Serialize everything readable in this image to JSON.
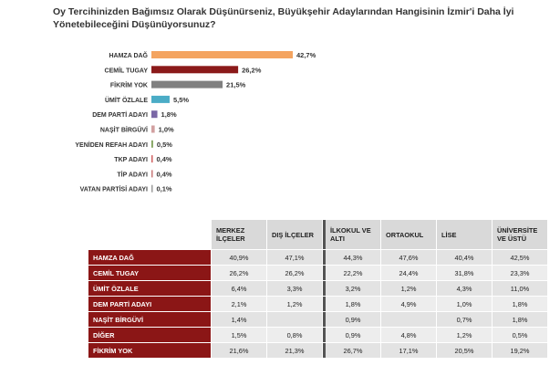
{
  "title": "Oy Tercihinizden Bağımsız Olarak Düşünürseniz, Büyükşehir Adaylarından Hangisinin İzmir'i Daha İyi Yönetebileceğini Düşünüyorsunuz?",
  "chart_data": {
    "type": "bar",
    "orientation": "horizontal",
    "title": "Oy Tercihinizden Bağımsız Olarak Düşünürseniz, Büyükşehir Adaylarından Hangisinin İzmir'i Daha İyi Yönetebileceğini Düşünüyorsunuz?",
    "xlabel": "",
    "ylabel": "",
    "xlim": [
      0,
      42.7
    ],
    "categories": [
      "HAMZA DAĞ",
      "CEMİL TUGAY",
      "FİKRİM YOK",
      "ÜMİT ÖZLALE",
      "DEM PARTİ ADAYI",
      "NAŞİT BİRGÜVİ",
      "YENİDEN REFAH ADAYI",
      "TKP ADAYI",
      "TİP ADAYI",
      "VATAN PARTİSİ ADAYI"
    ],
    "values": [
      42.7,
      26.2,
      21.5,
      5.5,
      1.8,
      1.0,
      0.5,
      0.4,
      0.4,
      0.1
    ],
    "value_labels": [
      "42,7%",
      "26,2%",
      "21,5%",
      "5,5%",
      "1,8%",
      "1,0%",
      "0,5%",
      "0,4%",
      "0,4%",
      "0,1%"
    ],
    "colors": [
      "#f4a460",
      "#8b1a1a",
      "#808080",
      "#4bacc6",
      "#7b68a6",
      "#d2a0a0",
      "#7fa05a",
      "#d06060",
      "#c87878",
      "#9b9b9b"
    ]
  },
  "table": {
    "headers": [
      "MERKEZ İLÇELER",
      "DIŞ İLÇELER",
      "İLKOKUL VE ALTI",
      "ORTAOKUL",
      "LİSE",
      "ÜNİVERSİTE VE ÜSTÜ"
    ],
    "rows": [
      {
        "label": "HAMZA DAĞ",
        "cells": [
          "40,9%",
          "47,1%",
          "44,3%",
          "47,6%",
          "40,4%",
          "42,5%"
        ]
      },
      {
        "label": "CEMİL TUGAY",
        "cells": [
          "26,2%",
          "26,2%",
          "22,2%",
          "24,4%",
          "31,8%",
          "23,3%"
        ]
      },
      {
        "label": "ÜMİT ÖZLALE",
        "cells": [
          "6,4%",
          "3,3%",
          "3,2%",
          "1,2%",
          "4,3%",
          "11,0%"
        ]
      },
      {
        "label": "DEM PARTİ ADAYI",
        "cells": [
          "2,1%",
          "1,2%",
          "1,8%",
          "4,9%",
          "1,0%",
          "1,8%"
        ]
      },
      {
        "label": "NAŞİT BİRGÜVİ",
        "cells": [
          "1,4%",
          "",
          "0,9%",
          "",
          "0,7%",
          "1,8%"
        ]
      },
      {
        "label": "DİĞER",
        "cells": [
          "1,5%",
          "0,8%",
          "0,9%",
          "4,8%",
          "1,2%",
          "0,5%"
        ]
      },
      {
        "label": "FİKRİM YOK",
        "cells": [
          "21,6%",
          "21,3%",
          "26,7%",
          "17,1%",
          "20,5%",
          "19,2%"
        ]
      }
    ]
  }
}
